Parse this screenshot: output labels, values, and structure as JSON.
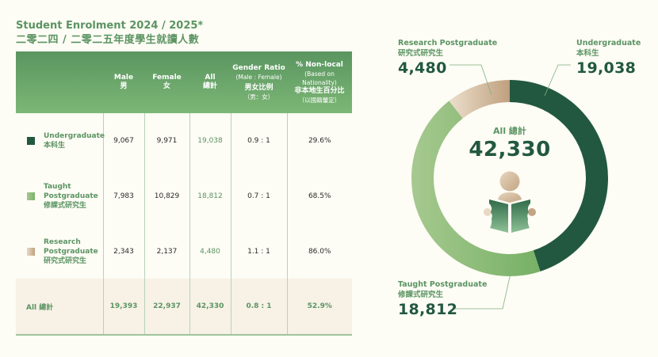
{
  "title": {
    "en": "Student Enrolment 2024 / 2025*",
    "zh": "二零二四 / 二零二五年度學生就讀人數"
  },
  "table": {
    "headers": {
      "male": {
        "en": "Male",
        "zh": "男"
      },
      "female": {
        "en": "Female",
        "zh": "女"
      },
      "all": {
        "en": "All",
        "zh": "總計"
      },
      "ratio": {
        "en": "Gender Ratio",
        "sub": "(Male : Female)",
        "zh": "男女比例",
        "zh_sub": "（男：女）"
      },
      "nonlocal": {
        "en": "% Non-local",
        "sub": "(Based on Nationality)",
        "zh": "非本地生百分比",
        "zh_sub": "（以國籍釐定）"
      }
    },
    "rows": [
      {
        "label_en": "Undergraduate",
        "label_zh": "本科生",
        "swatch": "#225840",
        "male": "9,067",
        "female": "9,971",
        "all": "19,038",
        "ratio": "0.9 : 1",
        "nonlocal": "29.6%"
      },
      {
        "label_en": "Taught Postgraduate",
        "label_zh": "修課式研究生",
        "swatch": "#8fbd78",
        "male": "7,983",
        "female": "10,829",
        "all": "18,812",
        "ratio": "0.7 : 1",
        "nonlocal": "68.5%"
      },
      {
        "label_en": "Research Postgraduate",
        "label_zh": "研究式研究生",
        "swatch": "#cdb498",
        "male": "2,343",
        "female": "2,137",
        "all": "4,480",
        "ratio": "1.1 : 1",
        "nonlocal": "86.0%"
      }
    ],
    "total": {
      "label": "All 總計",
      "male": "19,393",
      "female": "22,937",
      "all": "42,330",
      "ratio": "0.8 : 1",
      "nonlocal": "52.9%"
    }
  },
  "chart_data": {
    "type": "pie",
    "title": "All 總計",
    "total_label": "42,330",
    "total": 42330,
    "categories": [
      "Undergraduate",
      "Taught Postgraduate",
      "Research Postgraduate"
    ],
    "categories_zh": [
      "本科生",
      "修課式研究生",
      "研究式研究生"
    ],
    "values": [
      19038,
      18812,
      4480
    ],
    "value_labels": [
      "19,038",
      "18,812",
      "4,480"
    ],
    "colors": [
      "#225840",
      "#86b873",
      "#c9ad8c"
    ],
    "donut": true,
    "start": "top",
    "direction": "clockwise",
    "legend": "callouts"
  }
}
